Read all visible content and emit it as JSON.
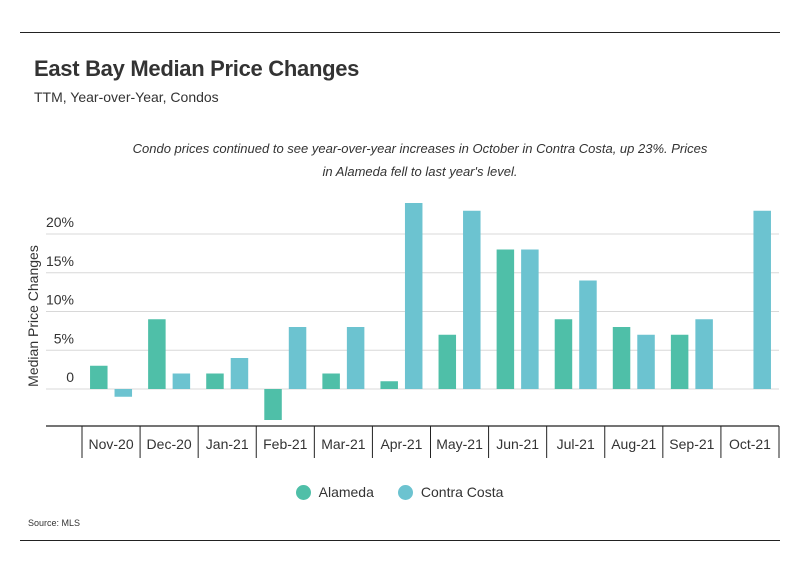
{
  "title": "East Bay Median Price Changes",
  "subtitle": "TTM, Year-over-Year, Condos",
  "annotation": "Condo prices continued to see year-over-year increases in October in Contra Costa, up 23%. Prices in Alameda fell to last year's level.",
  "source": "Source:  MLS",
  "colors": {
    "alameda": "#4fbfa8",
    "contra_costa": "#6cc3d0",
    "grid": "#d8d8d8",
    "axis": "#222222"
  },
  "chart_data": {
    "type": "bar",
    "title": "East Bay Median Price Changes",
    "subtitle": "TTM, Year-over-Year, Condos",
    "xlabel": "",
    "ylabel": "Median Price Changes",
    "ylim": [
      -5,
      25
    ],
    "yticks": [
      0,
      5,
      10,
      15,
      20
    ],
    "ytick_labels": [
      "0",
      "5%",
      "10%",
      "15%",
      "20%"
    ],
    "grid": true,
    "legend_position": "bottom-center",
    "categories": [
      "Nov-20",
      "Dec-20",
      "Jan-21",
      "Feb-21",
      "Mar-21",
      "Apr-21",
      "May-21",
      "Jun-21",
      "Jul-21",
      "Aug-21",
      "Sep-21",
      "Oct-21"
    ],
    "series": [
      {
        "name": "Alameda",
        "values": [
          3,
          9,
          2,
          -4,
          2,
          1,
          7,
          18,
          9,
          8,
          7,
          0
        ]
      },
      {
        "name": "Contra Costa",
        "values": [
          -1,
          2,
          4,
          8,
          8,
          24,
          23,
          18,
          14,
          7,
          9,
          23
        ]
      }
    ]
  }
}
